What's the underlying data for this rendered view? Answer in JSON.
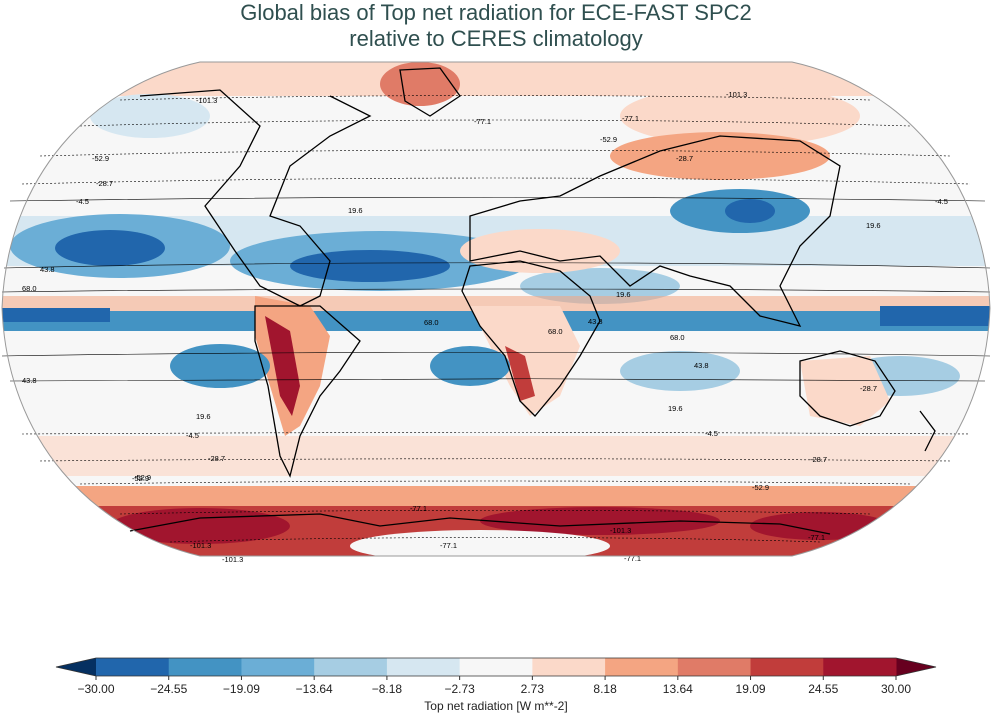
{
  "title": {
    "line1": "Global bias of Top net radiation for ECE-FAST SPC2",
    "line2": "relative to CERES climatology"
  },
  "colorbar": {
    "label": "Top net radiation [W m**-2]",
    "ticks": [
      "−30.00",
      "−24.55",
      "−19.09",
      "−13.64",
      "−8.18",
      "−2.73",
      "2.73",
      "8.18",
      "13.64",
      "19.09",
      "24.55",
      "30.00"
    ],
    "min_color": "#053061",
    "max_color": "#67001f",
    "colors": [
      "#2166ac",
      "#4393c3",
      "#6baed6",
      "#a6cde3",
      "#d6e7f1",
      "#f7f7f7",
      "#fbd9c9",
      "#f4a582",
      "#e07b67",
      "#c13d3b",
      "#a1152e"
    ]
  },
  "chart_data": {
    "type": "heatmap",
    "projection": "Robinson",
    "variable": "Top net radiation bias",
    "units": "W m**-2",
    "vmin": -30.0,
    "vmax": 30.0,
    "colormap": "RdBu_r (11 discrete levels, extended both ends)",
    "contour_levels": [
      -101.3,
      -77.1,
      -52.9,
      -28.7,
      -4.5,
      19.6,
      43.8,
      68.0
    ],
    "contour_labels": [
      {
        "label": "-101.3"
      },
      {
        "label": "-101.3"
      },
      {
        "label": "-77.1"
      },
      {
        "label": "-77.1"
      },
      {
        "label": "-52.9"
      },
      {
        "label": "-52.9"
      },
      {
        "label": "-28.7"
      },
      {
        "label": "-28.7"
      },
      {
        "label": "-4.5"
      },
      {
        "label": "-4.5"
      },
      {
        "label": "19.6"
      },
      {
        "label": "19.6"
      },
      {
        "label": "43.8"
      },
      {
        "label": "43.8"
      },
      {
        "label": "68.0"
      },
      {
        "label": "68.0"
      },
      {
        "label": "68.0"
      },
      {
        "label": "68.0"
      },
      {
        "label": "19.6"
      },
      {
        "label": "43.8"
      },
      {
        "label": "19.6"
      },
      {
        "label": "-4.5"
      },
      {
        "label": "-28.7"
      },
      {
        "label": "-52.9"
      },
      {
        "label": "-77.1"
      },
      {
        "label": "-101.3"
      },
      {
        "label": "-77.1"
      },
      {
        "label": "-101.3"
      },
      {
        "label": "-28.7"
      },
      {
        "label": "-52.9"
      },
      {
        "label": "-77.1"
      },
      {
        "label": "-4.5"
      },
      {
        "label": "19.6"
      },
      {
        "label": "43.8"
      },
      {
        "label": "-52.9"
      },
      {
        "label": "-28.7"
      },
      {
        "label": "-77.1"
      },
      {
        "label": "-101.3"
      }
    ]
  }
}
